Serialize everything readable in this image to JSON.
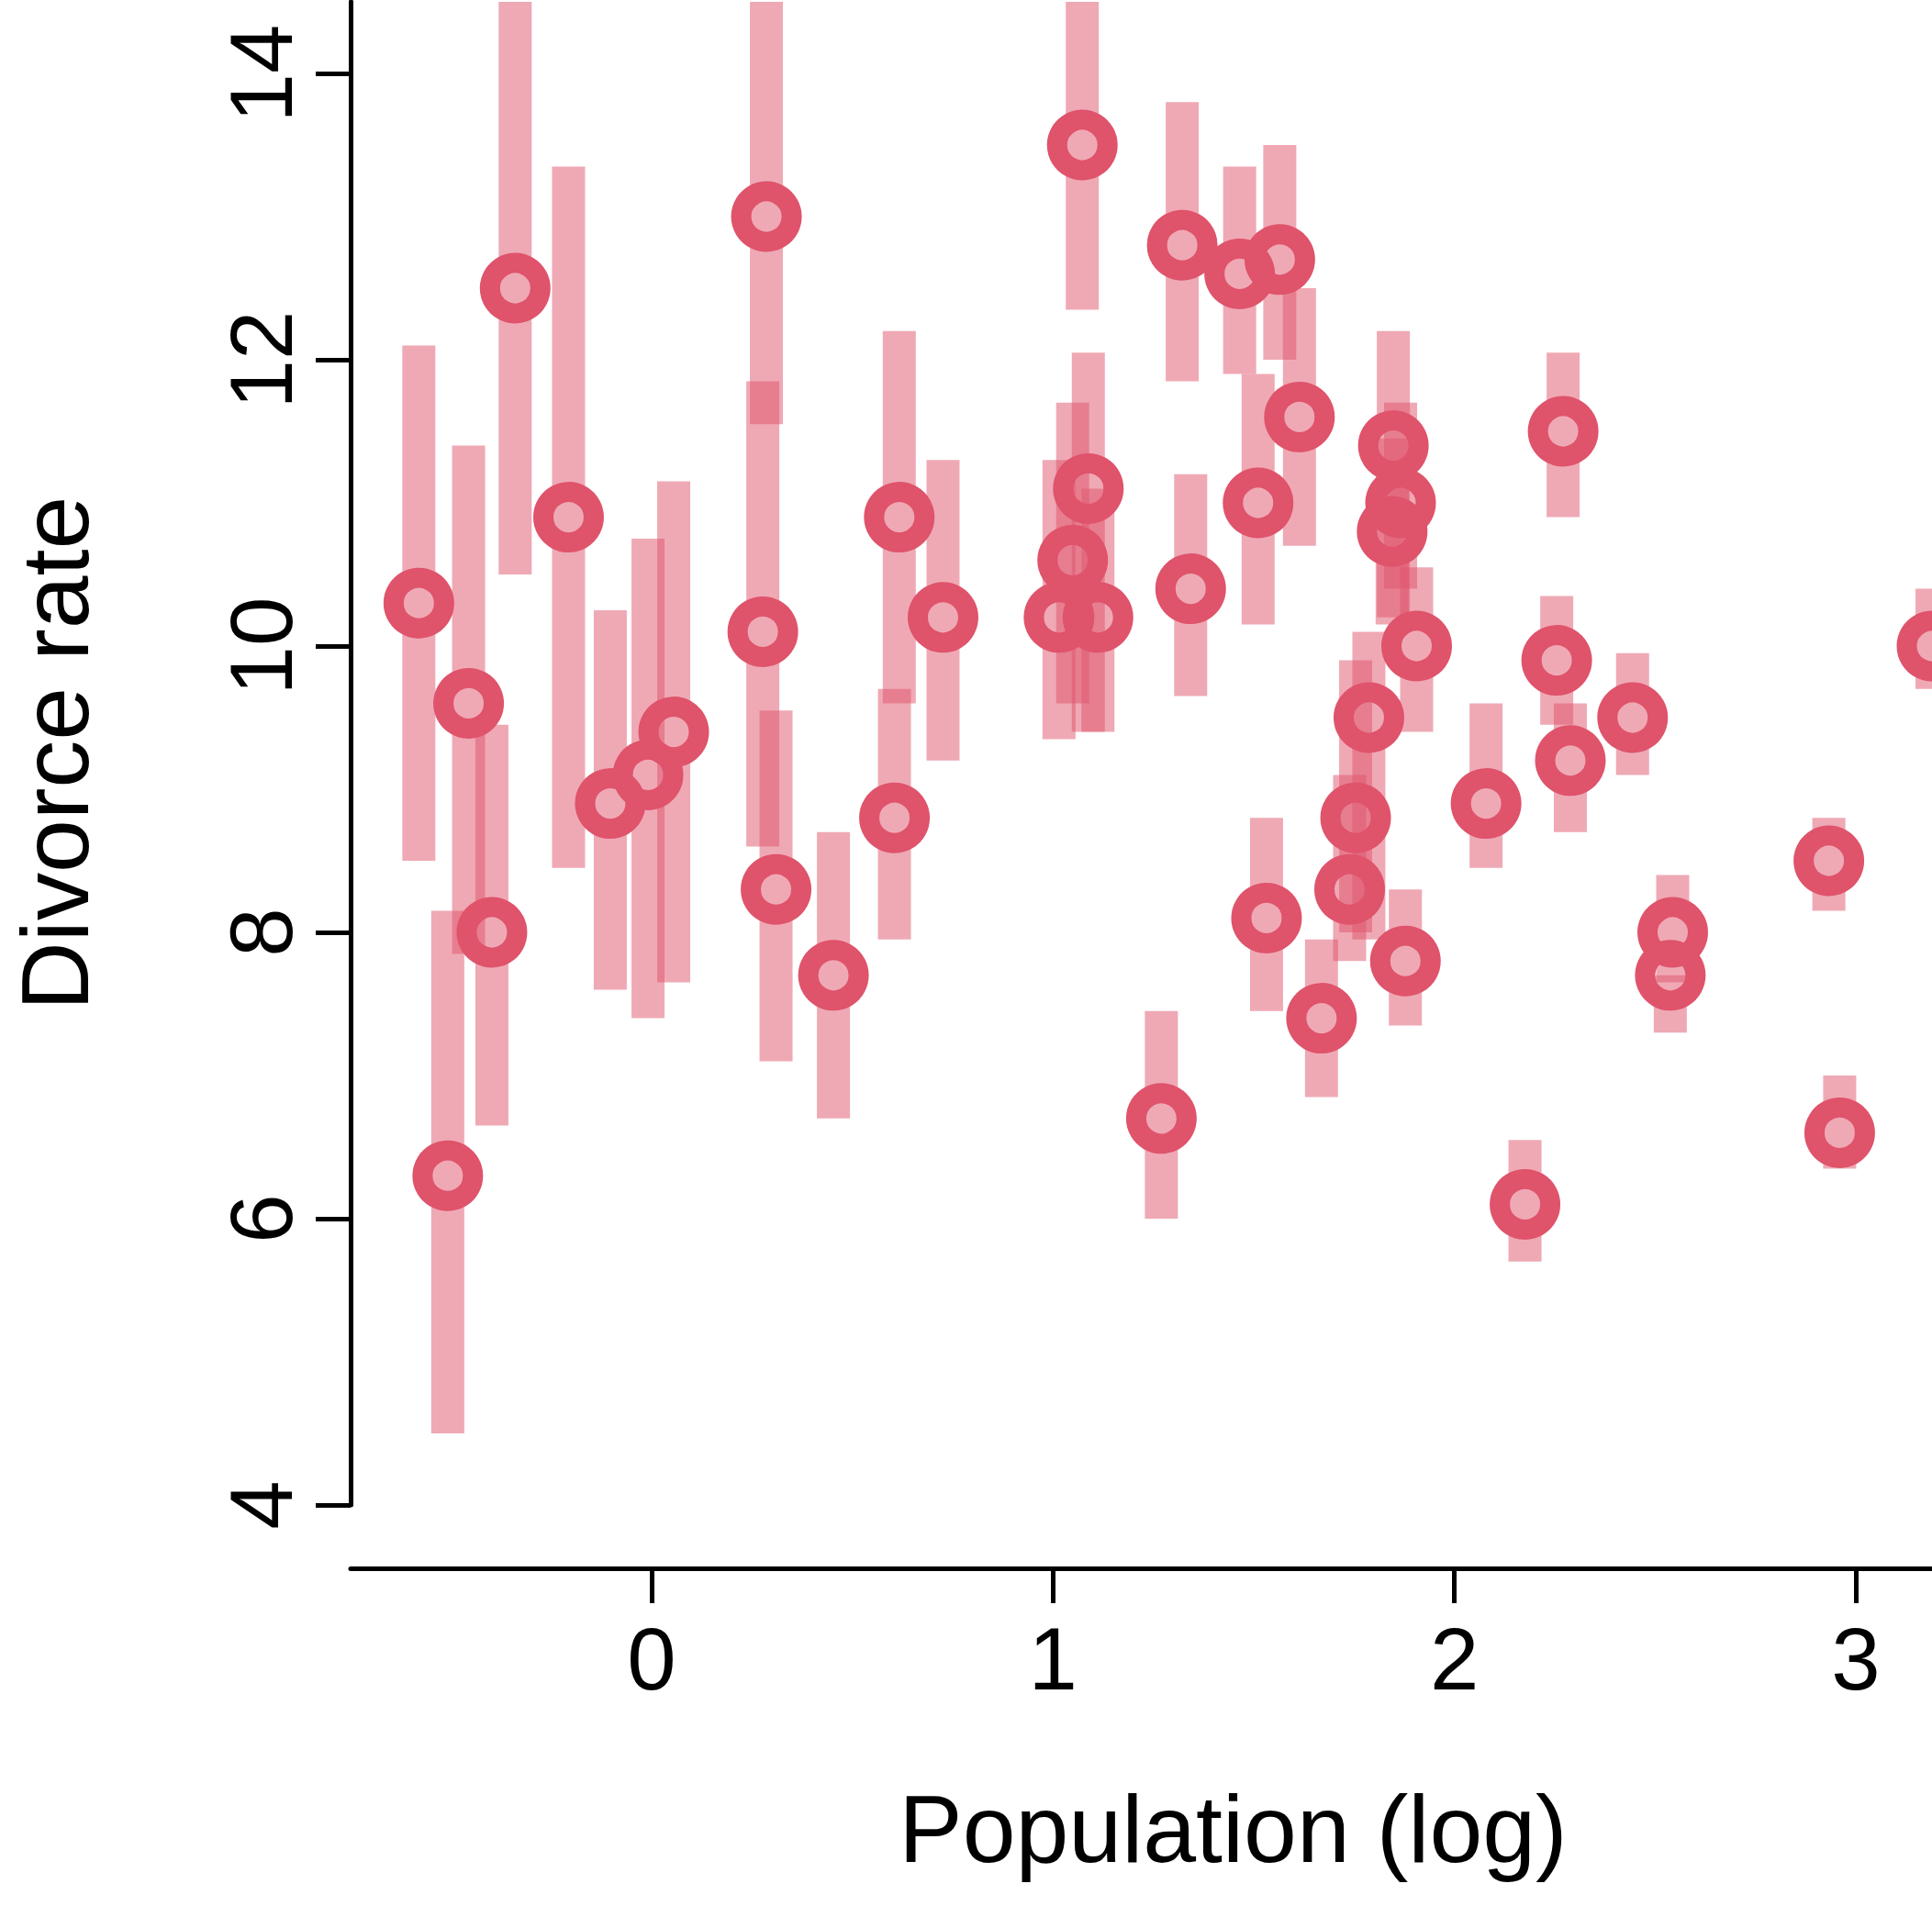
{
  "chart_data": {
    "type": "scatter",
    "xlabel": "Population (log)",
    "ylabel": "Divorce rate",
    "xlim": [
      -0.75,
      3.19
    ],
    "ylim": [
      4,
      14.5
    ],
    "xticks": [
      0,
      1,
      2,
      3
    ],
    "yticks": [
      4,
      6,
      8,
      10,
      12,
      14
    ],
    "marker": "circle",
    "color": "#df536b",
    "x": [
      -0.58,
      -0.456,
      -0.508,
      -0.398,
      -0.34,
      -0.207,
      -0.103,
      -0.009,
      0.055,
      0.286,
      0.277,
      0.31,
      0.453,
      0.617,
      0.605,
      0.726,
      1.073,
      1.015,
      1.049,
      1.088,
      1.112,
      1.27,
      1.322,
      1.343,
      1.465,
      1.565,
      1.511,
      1.614,
      1.532,
      1.669,
      1.754,
      1.739,
      1.787,
      1.848,
      1.866,
      1.845,
      1.906,
      1.878,
      2.079,
      2.176,
      2.271,
      2.255,
      2.289,
      2.444,
      2.544,
      2.538,
      2.933,
      2.96,
      3.19
    ],
    "values": [
      10.3,
      9.6,
      6.3,
      8.0,
      12.5,
      10.9,
      8.9,
      9.1,
      9.4,
      13.0,
      10.1,
      8.3,
      7.7,
      10.9,
      8.8,
      10.2,
      13.5,
      10.2,
      10.6,
      11.1,
      10.2,
      6.7,
      12.8,
      10.4,
      12.6,
      12.7,
      11.0,
      11.6,
      8.1,
      7.4,
      8.8,
      8.3,
      9.5,
      11.4,
      11.0,
      10.8,
      10.0,
      7.8,
      8.9,
      6.1,
      11.5,
      9.9,
      9.2,
      9.5,
      8.0,
      7.7,
      8.5,
      6.6,
      10.0
    ],
    "errors": [
      [
        8.5,
        12.1
      ],
      [
        7.85,
        11.4
      ],
      [
        4.5,
        8.15
      ],
      [
        6.65,
        9.45
      ],
      [
        10.5,
        14.5
      ],
      [
        8.45,
        13.35
      ],
      [
        7.6,
        10.25
      ],
      [
        7.4,
        10.75
      ],
      [
        7.65,
        11.15
      ],
      [
        11.55,
        14.5
      ],
      [
        8.6,
        11.85
      ],
      [
        7.1,
        9.55
      ],
      [
        6.7,
        8.7
      ],
      [
        9.6,
        12.2
      ],
      [
        7.95,
        9.7
      ],
      [
        9.2,
        11.3
      ],
      [
        12.35,
        14.5
      ],
      [
        9.35,
        11.3
      ],
      [
        9.6,
        11.7
      ],
      [
        9.4,
        12.05
      ],
      [
        9.4,
        11.1
      ],
      [
        6.0,
        7.45
      ],
      [
        11.85,
        13.8
      ],
      [
        9.65,
        11.2
      ],
      [
        11.9,
        13.35
      ],
      [
        12.0,
        13.5
      ],
      [
        10.15,
        11.9
      ],
      [
        10.7,
        12.5
      ],
      [
        7.45,
        8.8
      ],
      [
        6.85,
        7.95
      ],
      [
        8.0,
        9.9
      ],
      [
        7.8,
        9.1
      ],
      [
        7.95,
        10.1
      ],
      [
        10.2,
        12.2
      ],
      [
        10.4,
        11.7
      ],
      [
        10.15,
        11.45
      ],
      [
        9.4,
        10.55
      ],
      [
        7.35,
        8.3
      ],
      [
        8.45,
        9.6
      ],
      [
        5.7,
        6.55
      ],
      [
        10.9,
        12.05
      ],
      [
        9.45,
        10.35
      ],
      [
        8.7,
        9.6
      ],
      [
        9.1,
        9.95
      ],
      [
        7.65,
        8.4
      ],
      [
        7.3,
        7.7
      ],
      [
        8.15,
        8.8
      ],
      [
        6.35,
        7.0
      ],
      [
        9.7,
        10.4
      ]
    ]
  }
}
